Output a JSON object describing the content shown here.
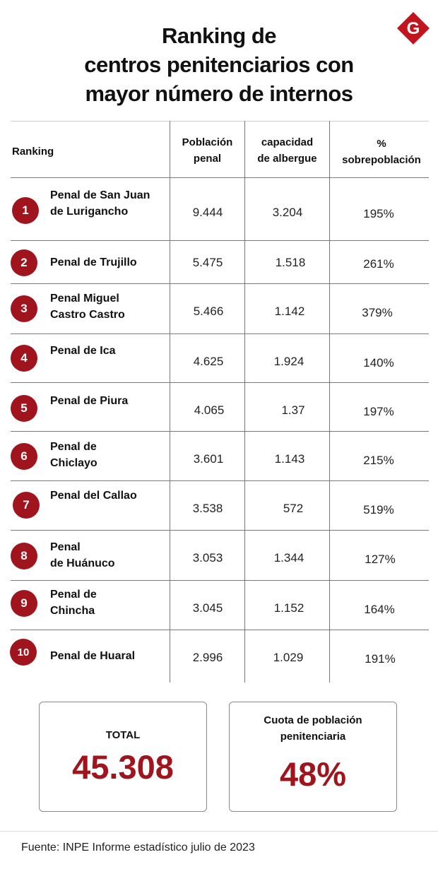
{
  "header": {
    "title_lines": [
      "Ranking de",
      "centros penitenciarios con",
      "mayor número de internos"
    ],
    "logo_letter": "G",
    "logo_color": "#c0141e"
  },
  "chart_data": {
    "type": "table",
    "columns": {
      "ranking": "Ranking",
      "poblacion": [
        "Población",
        "penal"
      ],
      "capacidad": [
        "capacidad",
        "de albergue"
      ],
      "sobrepoblacion": [
        "%",
        "sobrepoblación"
      ]
    },
    "rows": [
      {
        "rank": "1",
        "name": [
          "Penal de San Juan",
          "de Lurigancho"
        ],
        "poblacion": "9.444",
        "capacidad": "3.204",
        "sobrepoblacion": "195%"
      },
      {
        "rank": "2",
        "name": [
          "Penal de Trujillo"
        ],
        "poblacion": "5.475",
        "capacidad": "1.518",
        "sobrepoblacion": "261%"
      },
      {
        "rank": "3",
        "name": [
          "Penal Miguel",
          "Castro Castro"
        ],
        "poblacion": "5.466",
        "capacidad": "1.142",
        "sobrepoblacion": "379%"
      },
      {
        "rank": "4",
        "name": [
          "Penal de Ica"
        ],
        "poblacion": "4.625",
        "capacidad": "1.924",
        "sobrepoblacion": "140%"
      },
      {
        "rank": "5",
        "name": [
          "Penal de Piura"
        ],
        "poblacion": "4.065",
        "capacidad": "1.37",
        "sobrepoblacion": "197%"
      },
      {
        "rank": "6",
        "name": [
          "Penal de",
          "Chiclayo"
        ],
        "poblacion": "3.601",
        "capacidad": "1.143",
        "sobrepoblacion": "215%"
      },
      {
        "rank": "7",
        "name": [
          "Penal del Callao"
        ],
        "poblacion": "3.538",
        "capacidad": "572",
        "sobrepoblacion": "519%"
      },
      {
        "rank": "8",
        "name": [
          "Penal",
          "de Huánuco"
        ],
        "poblacion": "3.053",
        "capacidad": "1.344",
        "sobrepoblacion": "127%"
      },
      {
        "rank": "9",
        "name": [
          "Penal de",
          "Chincha"
        ],
        "poblacion": "3.045",
        "capacidad": "1.152",
        "sobrepoblacion": "164%"
      },
      {
        "rank": "10",
        "name": [
          "Penal de Huaral"
        ],
        "poblacion": "2.996",
        "capacidad": "1.029",
        "sobrepoblacion": "191%"
      }
    ],
    "accent_color": "#a0141e"
  },
  "summary": {
    "total_label": "TOTAL",
    "total_value": "45.308",
    "cuota_label": [
      "Cuota de población",
      "penitenciaria"
    ],
    "cuota_value": "48%"
  },
  "footer": {
    "source": "Fuente: INPE Informe estadístico julio de 2023"
  }
}
